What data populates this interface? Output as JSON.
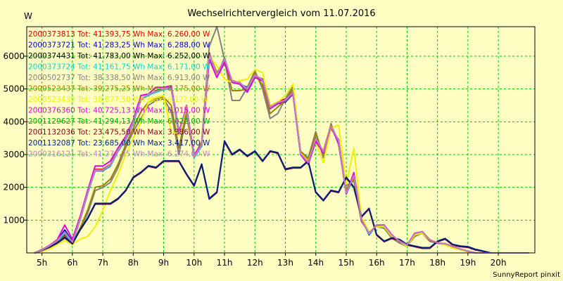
{
  "chart_data": {
    "type": "line",
    "title": "Wechselrichtervergleich vom 11.07.2016",
    "ylabel": "W",
    "xlabel": "",
    "ylim": [
      0,
      6900
    ],
    "xlim": [
      4.5,
      21.2
    ],
    "grid": true,
    "legend_placement": "top-left",
    "x_ticks": [
      {
        "value": 5,
        "label": "5h"
      },
      {
        "value": 6,
        "label": "6h"
      },
      {
        "value": 7,
        "label": "7h"
      },
      {
        "value": 8,
        "label": "8h"
      },
      {
        "value": 9,
        "label": "9h"
      },
      {
        "value": 10,
        "label": "10h"
      },
      {
        "value": 11,
        "label": "11h"
      },
      {
        "value": 12,
        "label": "12h"
      },
      {
        "value": 13,
        "label": "13h"
      },
      {
        "value": 14,
        "label": "14h"
      },
      {
        "value": 15,
        "label": "15h"
      },
      {
        "value": 16,
        "label": "16h"
      },
      {
        "value": 17,
        "label": "17h"
      },
      {
        "value": 18,
        "label": "18h"
      },
      {
        "value": 19,
        "label": "19h"
      },
      {
        "value": 20,
        "label": "20h"
      }
    ],
    "y_ticks": [
      1000,
      2000,
      3000,
      4000,
      5000,
      6000
    ],
    "x": [
      4.75,
      5,
      5.25,
      5.5,
      5.75,
      6,
      6.25,
      6.5,
      6.75,
      7,
      7.25,
      7.5,
      7.75,
      8,
      8.25,
      8.5,
      8.75,
      9,
      9.25,
      9.5,
      9.75,
      10,
      10.25,
      10.5,
      10.75,
      11,
      11.25,
      11.5,
      11.75,
      12,
      12.25,
      12.5,
      12.75,
      13,
      13.25,
      13.5,
      13.75,
      14,
      14.25,
      14.5,
      14.75,
      15,
      15.25,
      15.5,
      15.75,
      16,
      16.25,
      16.5,
      16.75,
      17,
      17.25,
      17.5,
      17.75,
      18,
      18.25,
      18.5,
      18.75,
      19,
      19.25,
      19.5,
      19.75,
      20,
      20.25,
      20.5,
      20.75,
      21
    ],
    "series": [
      {
        "name": "2000373813",
        "legend": "2000373813 Tot: 41.393,75 Wh Max: 6.260,00 W",
        "color": "#e00000",
        "values": [
          0,
          80,
          200,
          350,
          550,
          300,
          1000,
          1800,
          2550,
          2550,
          2700,
          3150,
          3500,
          4000,
          4650,
          4850,
          4900,
          5000,
          5000,
          3600,
          4500,
          2900,
          3300,
          6100,
          5450,
          5900,
          5250,
          5200,
          4950,
          5450,
          5250,
          4450,
          4600,
          4700,
          4900,
          3050,
          2750,
          3450,
          3100,
          3900,
          3400,
          1850,
          2400,
          1000,
          600,
          850,
          850,
          550,
          350,
          250,
          550,
          650,
          400,
          300,
          280,
          200,
          120,
          50,
          0,
          0,
          0,
          0,
          0,
          0,
          0,
          0
        ]
      },
      {
        "name": "2000373721",
        "legend": "2000373721 Tot: 41.283,25 Wh Max: 6.288,00 W",
        "color": "#0000c0",
        "values": [
          0,
          100,
          220,
          380,
          700,
          350,
          1050,
          1850,
          2500,
          2500,
          2650,
          3100,
          3450,
          3950,
          4700,
          4800,
          4950,
          5000,
          5050,
          3650,
          4450,
          2950,
          3250,
          5950,
          5400,
          5950,
          5200,
          5150,
          5050,
          5400,
          5300,
          4400,
          4550,
          4600,
          4850,
          3000,
          2750,
          3500,
          3050,
          3800,
          3450,
          1800,
          2300,
          1050,
          550,
          850,
          800,
          500,
          350,
          200,
          600,
          600,
          400,
          300,
          250,
          200,
          100,
          50,
          0,
          0,
          0,
          0,
          0,
          0,
          0,
          0
        ]
      },
      {
        "name": "2000374431",
        "legend": "2000374431 Tot: 41.783,00 Wh Max: 6.252,00 W",
        "color": "#000000",
        "values": [
          0,
          90,
          210,
          360,
          620,
          320,
          1020,
          1820,
          2520,
          2520,
          2680,
          3120,
          3480,
          3980,
          4680,
          4830,
          4920,
          5000,
          5020,
          3620,
          4480,
          2920,
          3280,
          6050,
          5420,
          5920,
          5230,
          5180,
          5000,
          5420,
          5270,
          4430,
          4580,
          4650,
          4880,
          3020,
          2750,
          3480,
          3080,
          3850,
          3420,
          1820,
          2350,
          1020,
          580,
          850,
          830,
          530,
          350,
          230,
          580,
          630,
          400,
          300,
          270,
          200,
          110,
          50,
          0,
          0,
          0,
          0,
          0,
          0,
          0,
          0
        ]
      },
      {
        "name": "2000373724",
        "legend": "2000373724 Tot: 41.161,75 Wh Max: 6.171,00 W",
        "color": "#00d8d8",
        "values": [
          0,
          85,
          205,
          355,
          600,
          310,
          1010,
          1810,
          2510,
          2510,
          2660,
          3110,
          3460,
          3960,
          4660,
          4810,
          4900,
          4980,
          5000,
          3600,
          4460,
          2900,
          3260,
          6000,
          5400,
          5900,
          5200,
          5150,
          4980,
          5400,
          5250,
          4400,
          4560,
          4630,
          4860,
          3000,
          2730,
          3460,
          3060,
          3830,
          3400,
          1800,
          2330,
          1000,
          570,
          840,
          820,
          520,
          340,
          220,
          570,
          620,
          390,
          290,
          260,
          190,
          100,
          45,
          0,
          0,
          0,
          0,
          0,
          0,
          0,
          0
        ]
      },
      {
        "name": "2000502737",
        "legend": "2000502737 Tot: 38.338,50 Wh Max: 6.913,00 W",
        "color": "#808080",
        "values": [
          0,
          60,
          150,
          300,
          450,
          280,
          700,
          1200,
          1900,
          2000,
          2150,
          2600,
          3200,
          3700,
          4100,
          4500,
          4650,
          4700,
          4300,
          3000,
          4200,
          2950,
          3400,
          6300,
          6900,
          5900,
          4650,
          4650,
          5050,
          5550,
          5000,
          4100,
          4250,
          4700,
          5100,
          3100,
          2900,
          3700,
          2900,
          3950,
          3300,
          2050,
          2200,
          950,
          650,
          800,
          750,
          450,
          300,
          200,
          500,
          600,
          350,
          300,
          250,
          150,
          100,
          40,
          0,
          0,
          0,
          0,
          0,
          0,
          0,
          0
        ]
      },
      {
        "name": "2000523437",
        "legend": "2000523437 Tot: 39.275,25 Wh Max: 6.175,00 W",
        "color": "#a08000",
        "values": [
          0,
          70,
          170,
          320,
          500,
          290,
          750,
          1300,
          2000,
          2050,
          2250,
          2700,
          3300,
          3800,
          4300,
          4600,
          4700,
          4750,
          4500,
          3200,
          4300,
          2950,
          3350,
          6050,
          5500,
          5850,
          4950,
          4950,
          5000,
          5500,
          5100,
          4250,
          4450,
          4650,
          5000,
          3100,
          2850,
          3650,
          3000,
          3900,
          3350,
          1950,
          2250,
          980,
          620,
          830,
          780,
          480,
          330,
          210,
          520,
          610,
          370,
          300,
          260,
          170,
          100,
          40,
          0,
          0,
          0,
          0,
          0,
          0,
          0,
          0
        ]
      },
      {
        "name": "2000523439",
        "legend": "2000523439 Tot: 38.877,50 Wh Max: 6.1??,00 W",
        "color": "#f0f000",
        "values": [
          0,
          50,
          120,
          250,
          380,
          260,
          420,
          500,
          800,
          1300,
          1900,
          2400,
          3000,
          3500,
          4000,
          4600,
          4750,
          4800,
          3700,
          3600,
          4400,
          3000,
          3300,
          6000,
          5700,
          5300,
          5200,
          5250,
          5300,
          5600,
          5500,
          4500,
          4600,
          4800,
          5150,
          3050,
          2800,
          3400,
          2750,
          3800,
          3900,
          2100,
          3200,
          1100,
          650,
          800,
          800,
          500,
          350,
          200,
          550,
          600,
          400,
          300,
          250,
          150,
          100,
          40,
          0,
          0,
          0,
          0,
          0,
          0,
          0,
          0
        ]
      },
      {
        "name": "2000376360",
        "legend": "2000376360 Tot: 40.725,13 Wh Max: 6.015,00 W",
        "color": "#e000e0",
        "values": [
          0,
          95,
          230,
          400,
          850,
          420,
          1100,
          1900,
          2650,
          2650,
          2800,
          3200,
          3550,
          4050,
          4800,
          4850,
          5050,
          5050,
          5100,
          3700,
          4450,
          3000,
          3300,
          5900,
          5350,
          5800,
          5200,
          5150,
          4900,
          5350,
          5250,
          4400,
          4550,
          4650,
          4850,
          3000,
          2700,
          3400,
          3050,
          3850,
          3350,
          1800,
          2450,
          1000,
          600,
          850,
          850,
          550,
          350,
          250,
          600,
          650,
          400,
          300,
          280,
          200,
          120,
          50,
          0,
          0,
          0,
          0,
          0,
          0,
          0,
          0
        ]
      },
      {
        "name": "2001129627",
        "legend": "2001129627 Tot: 41.294,13 Wh Max: 6.022,00 W",
        "color": "#00b000",
        "values": [
          0,
          75,
          180,
          300,
          470,
          280,
          700,
          1050,
          1500,
          1500,
          1500,
          1650,
          1900,
          2300,
          2450,
          2650,
          2600,
          2800,
          2800,
          2800,
          2400,
          2050,
          2700,
          1650,
          1850,
          3400,
          3000,
          3150,
          2950,
          3100,
          2800,
          3100,
          3050,
          2550,
          2600,
          2600,
          2800,
          1850,
          1600,
          1900,
          1850,
          2300,
          2000,
          1100,
          1350,
          550,
          350,
          450,
          400,
          250,
          200,
          150,
          150,
          350,
          430,
          250,
          200,
          180,
          100,
          50,
          0,
          0,
          0,
          0,
          0,
          0
        ]
      },
      {
        "name": "2001132036",
        "legend": "2001132036 Tot: 23.475,50 Wh Max: 3.386,00 W",
        "color": "#800020",
        "values": [
          0,
          72,
          175,
          295,
          460,
          275,
          690,
          1040,
          1490,
          1490,
          1490,
          1640,
          1890,
          2290,
          2440,
          2640,
          2590,
          2790,
          2790,
          2790,
          2390,
          2040,
          2690,
          1640,
          1840,
          3386,
          2990,
          3140,
          2940,
          3090,
          2790,
          3090,
          3040,
          2540,
          2590,
          2590,
          2790,
          1840,
          1590,
          1890,
          1840,
          2290,
          1990,
          1090,
          1340,
          540,
          340,
          440,
          390,
          240,
          190,
          140,
          140,
          340,
          420,
          240,
          190,
          170,
          90,
          45,
          0,
          0,
          0,
          0,
          0,
          0
        ]
      },
      {
        "name": "2001132087",
        "legend": "2001132087 Tot: 23.685,00 Wh Max: 3.417,00 W",
        "color": "#002080",
        "values": [
          0,
          78,
          185,
          305,
          480,
          285,
          710,
          1060,
          1510,
          1510,
          1510,
          1660,
          1910,
          2310,
          2460,
          2660,
          2610,
          2810,
          2810,
          2810,
          2410,
          2060,
          2710,
          1660,
          1860,
          3417,
          3010,
          3160,
          2960,
          3110,
          2810,
          3110,
          3060,
          2560,
          2610,
          2610,
          2810,
          1860,
          1610,
          1910,
          1860,
          2310,
          2010,
          1110,
          1360,
          560,
          360,
          460,
          410,
          260,
          210,
          160,
          160,
          360,
          440,
          260,
          210,
          190,
          110,
          55,
          0,
          0,
          0,
          0,
          0,
          0
        ]
      },
      {
        "name": "2000316121",
        "legend": "2000316121 Tot: 41.272,25 Wh Max: 6.274,00 W",
        "color": "#c080c0",
        "values": [
          0,
          88,
          215,
          370,
          640,
          330,
          1030,
          1830,
          2530,
          2530,
          2690,
          3130,
          3490,
          3990,
          4690,
          4840,
          4930,
          5010,
          5030,
          3630,
          4490,
          2930,
          3290,
          6070,
          5430,
          5930,
          5240,
          5190,
          5010,
          5430,
          5280,
          4440,
          4590,
          4660,
          4890,
          3030,
          2760,
          3490,
          3090,
          3860,
          3430,
          1830,
          2360,
          1030,
          590,
          860,
          840,
          540,
          360,
          240,
          590,
          640,
          410,
          310,
          280,
          210,
          120,
          55,
          0,
          0,
          0,
          0,
          0,
          0,
          0,
          0
        ]
      }
    ]
  },
  "footer": "SunnyReport pinxit"
}
